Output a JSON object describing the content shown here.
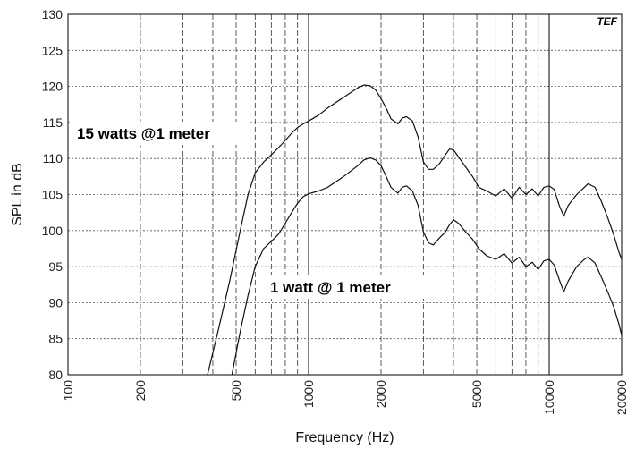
{
  "chart_data": {
    "type": "line",
    "xlabel": "Frequency (Hz)",
    "ylabel": "SPL in dB",
    "xscale": "log",
    "xlim": [
      100,
      20000
    ],
    "ylim": [
      80,
      130
    ],
    "x_ticks": [
      100,
      200,
      500,
      1000,
      2000,
      5000,
      10000,
      20000
    ],
    "x_tick_labels": [
      "100",
      "200",
      "500",
      "1000",
      "2000",
      "5000",
      "10000",
      "20000"
    ],
    "y_ticks": [
      80,
      85,
      90,
      95,
      100,
      105,
      110,
      115,
      120,
      125,
      130
    ],
    "y_tick_labels": [
      "80",
      "85",
      "90",
      "95",
      "100",
      "105",
      "110",
      "115",
      "120",
      "125",
      "130"
    ],
    "grid": true,
    "logo_text": "TEF",
    "annotations": [
      {
        "id": "a15",
        "text": "15 watts @1 meter"
      },
      {
        "id": "a1",
        "text": "1 watt @ 1 meter"
      }
    ],
    "series": [
      {
        "id": "s15",
        "x": [
          380,
          420,
          470,
          520,
          560,
          600,
          650,
          700,
          750,
          800,
          850,
          900,
          950,
          1000,
          1100,
          1200,
          1400,
          1600,
          1700,
          1800,
          1900,
          2000,
          2100,
          2200,
          2350,
          2450,
          2550,
          2700,
          2850,
          3000,
          3150,
          3300,
          3500,
          3700,
          3850,
          4000,
          4200,
          4500,
          4800,
          5100,
          5500,
          6000,
          6500,
          7000,
          7500,
          8000,
          8500,
          9000,
          9500,
          10000,
          10500,
          11000,
          11500,
          12000,
          13000,
          14000,
          14500,
          15500,
          16500,
          17500,
          18500,
          19500,
          20000
        ],
        "y": [
          80,
          86,
          93,
          100,
          105,
          108,
          109.5,
          110.5,
          111.5,
          112.5,
          113.5,
          114.3,
          114.8,
          115.2,
          116,
          117,
          118.5,
          119.8,
          120.2,
          120.1,
          119.5,
          118.3,
          117,
          115.5,
          114.8,
          115.6,
          115.8,
          115.2,
          113,
          109.5,
          108.5,
          108.5,
          109.3,
          110.5,
          111.3,
          111.2,
          110.2,
          108.8,
          107.5,
          106,
          105.5,
          104.8,
          105.8,
          104.5,
          106,
          105,
          105.8,
          104.8,
          106,
          106.2,
          105.7,
          103.5,
          102,
          103.5,
          105,
          106,
          106.5,
          106,
          104,
          101.8,
          99.5,
          97,
          96
        ]
      },
      {
        "id": "s1",
        "x": [
          480,
          520,
          560,
          600,
          650,
          700,
          750,
          800,
          850,
          900,
          950,
          1000,
          1100,
          1200,
          1400,
          1600,
          1700,
          1800,
          1900,
          2000,
          2100,
          2200,
          2350,
          2450,
          2550,
          2700,
          2850,
          3000,
          3150,
          3300,
          3500,
          3700,
          3850,
          4000,
          4200,
          4500,
          4800,
          5100,
          5500,
          6000,
          6500,
          7000,
          7500,
          8000,
          8500,
          9000,
          9500,
          10000,
          10500,
          11000,
          11500,
          12000,
          13000,
          14000,
          14500,
          15500,
          16500,
          17500,
          18500,
          19500,
          20000
        ],
        "y": [
          80,
          86,
          91,
          95,
          97.5,
          98.5,
          99.5,
          101,
          102.5,
          103.8,
          104.7,
          105.1,
          105.5,
          106,
          107.5,
          109,
          109.8,
          110.1,
          109.8,
          109,
          107.5,
          106,
          105.2,
          106,
          106.2,
          105.5,
          103.5,
          99.8,
          98.3,
          98,
          99,
          99.8,
          100.8,
          101.5,
          101,
          99.8,
          98.8,
          97.5,
          96.5,
          96,
          96.8,
          95.5,
          96.3,
          95,
          95.6,
          94.6,
          95.8,
          96,
          95.2,
          93.2,
          91.5,
          93,
          95,
          96,
          96.3,
          95.5,
          93.5,
          91.5,
          89.5,
          87,
          85.5
        ]
      }
    ]
  }
}
